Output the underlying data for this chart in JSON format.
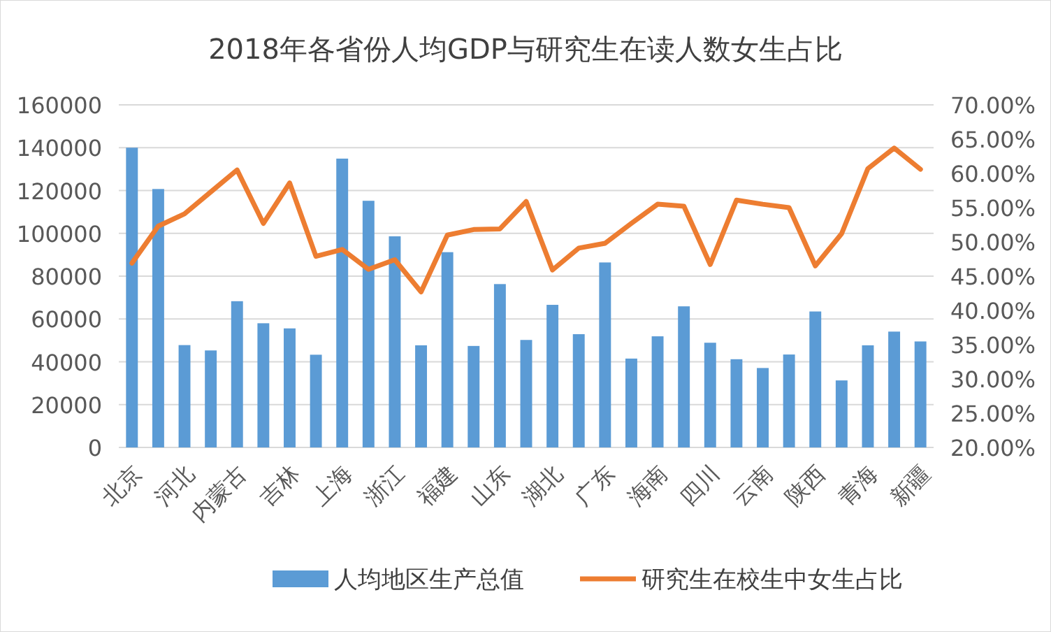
{
  "chart_data": {
    "type": "bar",
    "title": "2018年各省份人均GDP与研究生在读人数女生占比",
    "categories": [
      "北京",
      null,
      "河北",
      null,
      "内蒙古",
      null,
      "吉林",
      null,
      "上海",
      null,
      "浙江",
      null,
      "福建",
      null,
      "山东",
      null,
      "湖北",
      null,
      "广东",
      null,
      "海南",
      null,
      "四川",
      null,
      "云南",
      null,
      "陕西",
      null,
      "青海",
      null,
      "新疆"
    ],
    "series": [
      {
        "name": "人均地区生产总值",
        "color": "#5b9bd5",
        "values": [
          140000,
          120700,
          47800,
          45300,
          68300,
          58000,
          55600,
          43300,
          134900,
          115200,
          98600,
          47700,
          91200,
          47400,
          76300,
          50200,
          66600,
          52900,
          86400,
          41500,
          51900,
          65900,
          48900,
          41200,
          37100,
          43400,
          63500,
          31300,
          47700,
          54100,
          49500
        ]
      },
      {
        "name": "研究生在校生中女生占比",
        "type": "line",
        "axis": "y2",
        "color": "#ed7d31",
        "values": [
          46.9,
          52.3,
          54.1,
          57.3,
          60.5,
          52.7,
          58.6,
          47.9,
          48.9,
          46.0,
          47.4,
          42.7,
          51.0,
          51.8,
          51.9,
          55.9,
          45.9,
          49.1,
          49.8,
          52.7,
          55.5,
          55.2,
          46.7,
          56.1,
          55.5,
          55.0,
          46.5,
          51.2,
          60.7,
          63.7,
          60.6
        ]
      }
    ],
    "ylim": [
      0,
      160000
    ],
    "yticks": [
      0,
      20000,
      40000,
      60000,
      80000,
      100000,
      120000,
      140000,
      160000
    ],
    "y2lim": [
      20,
      70
    ],
    "y2ticks": [
      {
        "value": 20,
        "label": "20.00%"
      },
      {
        "value": 25,
        "label": "25.00%"
      },
      {
        "value": 30,
        "label": "30.00%"
      },
      {
        "value": 35,
        "label": "35.00%"
      },
      {
        "value": 40,
        "label": "40.00%"
      },
      {
        "value": 45,
        "label": "45.00%"
      },
      {
        "value": 50,
        "label": "50.00%"
      },
      {
        "value": 55,
        "label": "55.00%"
      },
      {
        "value": 60,
        "label": "60.00%"
      },
      {
        "value": 65,
        "label": "65.00%"
      },
      {
        "value": 70,
        "label": "70.00%"
      }
    ],
    "grid": "y",
    "legend": "bottom",
    "marker": "none",
    "line_style": "solid"
  }
}
